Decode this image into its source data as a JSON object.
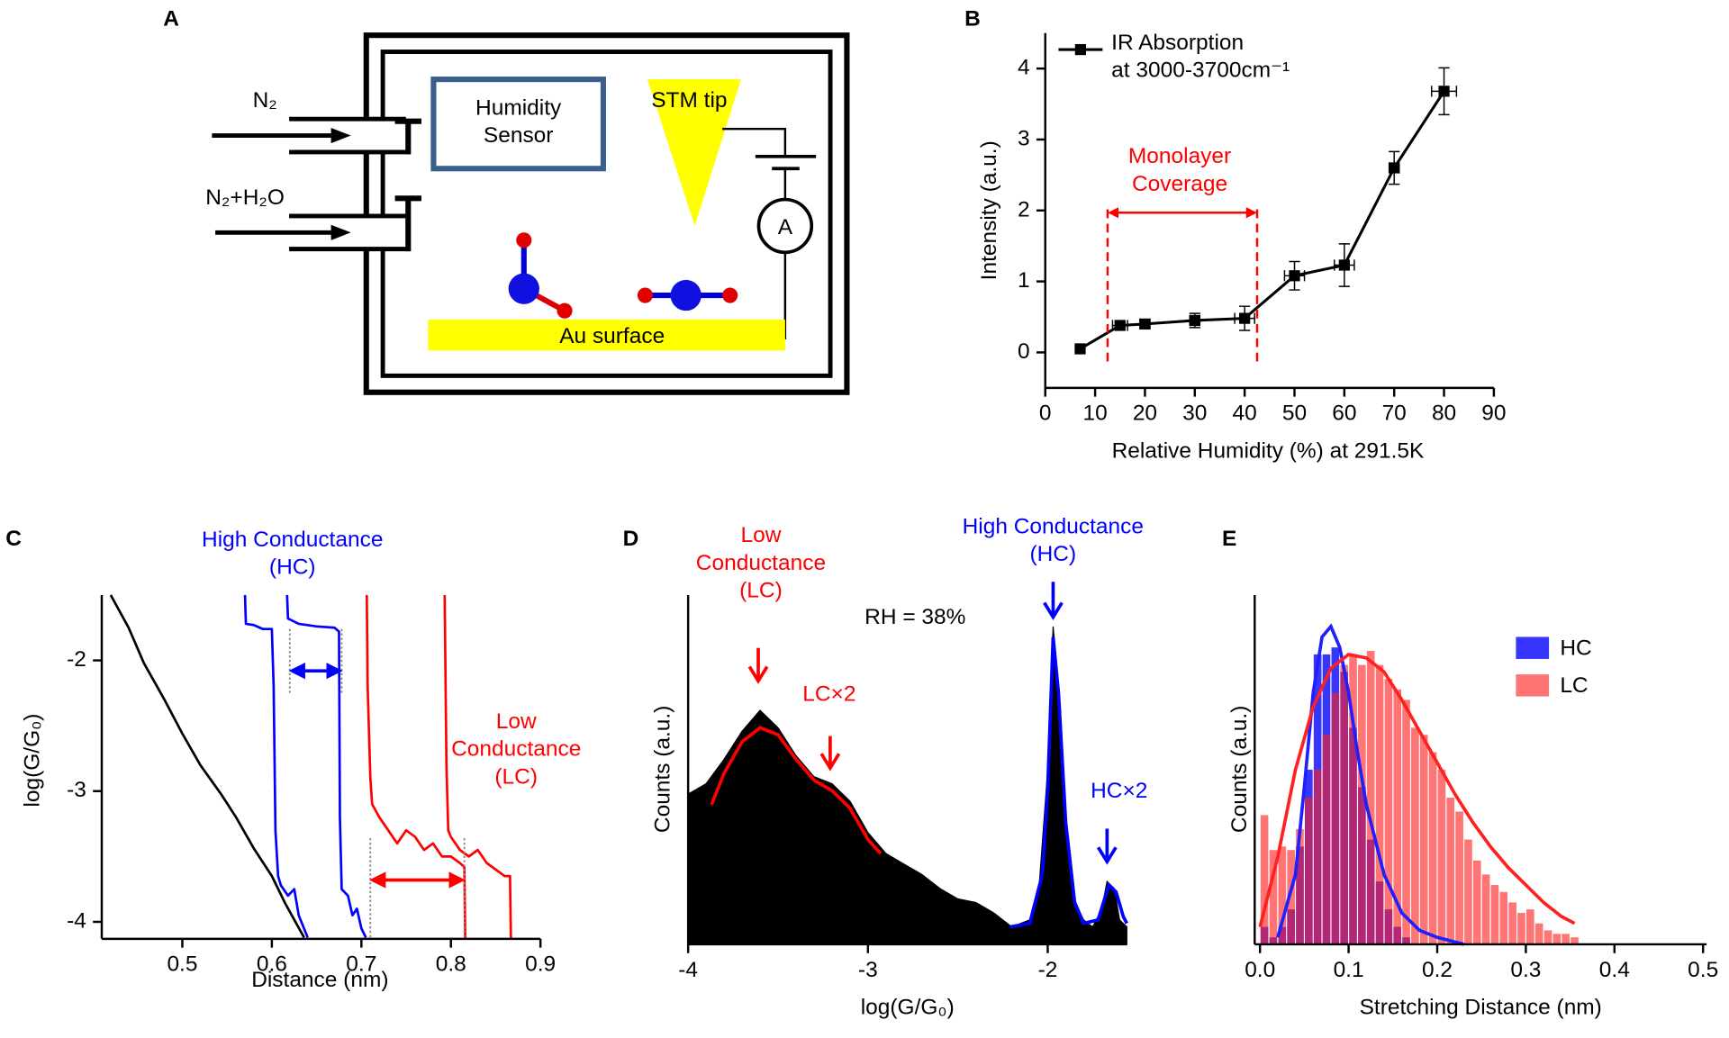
{
  "diagram": {
    "label": "A",
    "inlets": [
      "N₂",
      "N₂+H₂O"
    ],
    "sensor": "Humidity\nSensor",
    "tip": "STM tip",
    "meter": "A",
    "surface": "Au surface"
  },
  "chart_data": [
    {
      "type": "line",
      "panel": "B",
      "xlabel": "Relative Humidity (%) at 291.5K",
      "ylabel": "Intensity (a.u.)",
      "xlim": [
        0,
        90
      ],
      "ylim": [
        -0.5,
        4.5
      ],
      "xticks": [
        0,
        10,
        20,
        30,
        40,
        50,
        60,
        70,
        80,
        90
      ],
      "yticks": [
        0,
        1,
        2,
        3,
        4
      ],
      "legend": "upper left",
      "series": [
        {
          "name": "IR Absorption\nat 3000-3700cm⁻¹",
          "color": "#000000",
          "x": [
            7,
            15,
            20,
            30,
            40,
            50,
            60,
            70,
            80
          ],
          "values": [
            0.05,
            0.38,
            0.4,
            0.45,
            0.48,
            1.08,
            1.23,
            2.6,
            3.68
          ],
          "xerr": [
            0,
            1.5,
            1,
            1,
            2,
            2,
            2,
            1,
            2.5
          ],
          "yerr": [
            0,
            0.04,
            0.04,
            0.1,
            0.17,
            0.2,
            0.3,
            0.23,
            0.33
          ]
        }
      ],
      "range": [
        12.5,
        42.5
      ],
      "range_color": "#ff0000",
      "annotations": [
        {
          "text": "Monolayer\nCoverage",
          "color": "#ff0000"
        }
      ]
    },
    {
      "type": "line",
      "panel": "C",
      "xlabel": "Distance (nm)",
      "ylabel": "log(G/G₀)",
      "xlim": [
        0.41,
        0.9
      ],
      "ylim": [
        -4.13,
        -1.5
      ],
      "xticks": [
        0.5,
        0.6,
        0.7,
        0.8,
        0.9
      ],
      "yticks": [
        -4,
        -3,
        -2
      ],
      "series": [
        {
          "color": "#000000",
          "x": [
            0.42,
            0.44,
            0.457,
            0.48,
            0.5,
            0.52,
            0.543,
            0.56,
            0.58,
            0.6,
            0.615,
            0.636
          ],
          "values": [
            -1.5,
            -1.75,
            -2.02,
            -2.3,
            -2.56,
            -2.8,
            -3.02,
            -3.2,
            -3.44,
            -3.65,
            -3.86,
            -4.12
          ]
        },
        {
          "color": "#0000ff",
          "x": [
            0.57,
            0.571,
            0.58,
            0.59,
            0.6,
            0.602,
            0.604,
            0.607,
            0.61,
            0.618,
            0.625,
            0.63,
            0.64
          ],
          "values": [
            -1.5,
            -1.72,
            -1.73,
            -1.76,
            -1.76,
            -2.2,
            -3.3,
            -3.65,
            -3.72,
            -3.8,
            -3.75,
            -3.95,
            -4.12
          ]
        },
        {
          "color": "#0000ff",
          "x": [
            0.617,
            0.618,
            0.63,
            0.65,
            0.67,
            0.675,
            0.676,
            0.678,
            0.685,
            0.69,
            0.695,
            0.7,
            0.705
          ],
          "values": [
            -1.5,
            -1.68,
            -1.72,
            -1.74,
            -1.75,
            -1.78,
            -3.2,
            -3.75,
            -3.8,
            -3.95,
            -3.9,
            -4.05,
            -4.12
          ]
        },
        {
          "color": "#ff0000",
          "x": [
            0.706,
            0.707,
            0.71,
            0.712,
            0.72,
            0.73,
            0.74,
            0.75,
            0.76,
            0.77,
            0.78,
            0.79,
            0.8,
            0.81,
            0.815,
            0.816
          ],
          "values": [
            -1.5,
            -2.2,
            -2.9,
            -3.1,
            -3.2,
            -3.3,
            -3.4,
            -3.3,
            -3.35,
            -3.45,
            -3.4,
            -3.5,
            -3.5,
            -3.55,
            -3.58,
            -4.13
          ]
        },
        {
          "color": "#ff0000",
          "x": [
            0.793,
            0.795,
            0.797,
            0.8,
            0.81,
            0.82,
            0.83,
            0.84,
            0.85,
            0.86,
            0.866,
            0.867
          ],
          "values": [
            -1.5,
            -2.8,
            -3.3,
            -3.35,
            -3.45,
            -3.5,
            -3.45,
            -3.55,
            -3.6,
            -3.65,
            -3.65,
            -4.13
          ]
        }
      ],
      "arrows": [
        {
          "x": [
            0.62,
            0.678
          ],
          "y": -2.08,
          "color": "#0000ff"
        },
        {
          "x": [
            0.71,
            0.815
          ],
          "y": -3.68,
          "color": "#ff0000"
        }
      ],
      "annotations": [
        {
          "text": "High Conductance\n(HC)",
          "color": "#0000ff"
        },
        {
          "text": "Low\nConductance\n(LC)",
          "color": "#ff0000"
        }
      ]
    },
    {
      "type": "area",
      "panel": "D",
      "xlabel": "log(G/G₀)",
      "ylabel": "Counts (a.u.)",
      "xlim": [
        -4.0,
        -1.56
      ],
      "ylim": [
        0,
        1
      ],
      "xticks": [
        -4,
        -3,
        -2
      ],
      "series": [
        {
          "color": "#000000",
          "fill": true,
          "x": [
            -4.0,
            -3.9,
            -3.8,
            -3.7,
            -3.6,
            -3.5,
            -3.4,
            -3.3,
            -3.2,
            -3.1,
            -3.0,
            -2.9,
            -2.8,
            -2.7,
            -2.6,
            -2.5,
            -2.4,
            -2.3,
            -2.2,
            -2.1,
            -2.05,
            -2.0,
            -1.97,
            -1.93,
            -1.9,
            -1.85,
            -1.8,
            -1.75,
            -1.7,
            -1.67,
            -1.63,
            -1.6,
            -1.56
          ],
          "values": [
            0.43,
            0.46,
            0.53,
            0.61,
            0.67,
            0.62,
            0.54,
            0.48,
            0.46,
            0.41,
            0.32,
            0.26,
            0.23,
            0.2,
            0.16,
            0.13,
            0.12,
            0.09,
            0.05,
            0.07,
            0.15,
            0.5,
            0.91,
            0.68,
            0.31,
            0.12,
            0.07,
            0.05,
            0.1,
            0.18,
            0.16,
            0.07,
            0.05
          ]
        },
        {
          "color": "#ff0000",
          "x": [
            -3.87,
            -3.8,
            -3.7,
            -3.6,
            -3.5,
            -3.4,
            -3.3,
            -3.2,
            -3.1,
            -3.0,
            -2.93
          ],
          "values": [
            0.4,
            0.49,
            0.58,
            0.62,
            0.6,
            0.53,
            0.47,
            0.44,
            0.39,
            0.3,
            0.26
          ]
        },
        {
          "color": "#0000ff",
          "x": [
            -2.21,
            -2.1,
            -2.03,
            -2.0,
            -1.97,
            -1.94,
            -1.9,
            -1.85,
            -1.8,
            -1.72,
            -1.66,
            -1.62,
            -1.58,
            -1.56
          ],
          "values": [
            0.05,
            0.06,
            0.2,
            0.45,
            0.88,
            0.72,
            0.35,
            0.12,
            0.06,
            0.07,
            0.17,
            0.15,
            0.08,
            0.06
          ]
        }
      ],
      "annotations": [
        {
          "text": "Low\nConductance\n(LC)",
          "color": "#ff0000",
          "x": -3.61
        },
        {
          "text": "LC×2",
          "color": "#ff0000",
          "x": -3.21
        },
        {
          "text": "RH = 38%",
          "color": "#000000"
        },
        {
          "text": "High Conductance\n(HC)",
          "color": "#0000ff",
          "x": -1.97
        },
        {
          "text": "HC×2",
          "color": "#0000ff",
          "x": -1.67
        }
      ]
    },
    {
      "type": "histogram",
      "panel": "E",
      "xlabel": "Stretching Distance (nm)",
      "ylabel": "Counts (a.u.)",
      "xlim": [
        -0.006,
        0.504
      ],
      "ylim": [
        0,
        1
      ],
      "xticks": [
        {
          "value": 0,
          "label": "0.0"
        },
        0.1,
        0.2,
        0.3,
        0.4,
        0.5
      ],
      "legend": "upper right",
      "series": [
        {
          "name": "HC",
          "color": "#2020ff",
          "opacity": 0.9,
          "bins": [
            0,
            0.01,
            0.02,
            0.03,
            0.04,
            0.05,
            0.06,
            0.07,
            0.08,
            0.09,
            0.1,
            0.11,
            0.12,
            0.13,
            0.14,
            0.15,
            0.16,
            0.17
          ],
          "values": [
            0.05,
            0.02,
            0.05,
            0.1,
            0.28,
            0.5,
            0.83,
            0.83,
            0.85,
            0.78,
            0.62,
            0.45,
            0.3,
            0.18,
            0.1,
            0.05,
            0.02
          ],
          "fit": {
            "x": [
              0.02,
              0.04,
              0.05,
              0.06,
              0.07,
              0.08,
              0.09,
              0.1,
              0.11,
              0.12,
              0.14,
              0.16,
              0.18,
              0.2,
              0.23
            ],
            "values": [
              0.02,
              0.2,
              0.45,
              0.72,
              0.88,
              0.91,
              0.85,
              0.72,
              0.55,
              0.4,
              0.2,
              0.09,
              0.04,
              0.02,
              0.0
            ]
          }
        },
        {
          "name": "LC",
          "color": "#ff2020",
          "opacity": 0.62,
          "bins": [
            0,
            0.01,
            0.02,
            0.03,
            0.04,
            0.05,
            0.06,
            0.07,
            0.08,
            0.09,
            0.1,
            0.11,
            0.12,
            0.13,
            0.14,
            0.15,
            0.16,
            0.17,
            0.18,
            0.19,
            0.2,
            0.21,
            0.22,
            0.23,
            0.24,
            0.25,
            0.26,
            0.27,
            0.28,
            0.29,
            0.3,
            0.31,
            0.32,
            0.33,
            0.34,
            0.35,
            0.36
          ],
          "values": [
            0.37,
            0.27,
            0.28,
            0.27,
            0.33,
            0.42,
            0.5,
            0.6,
            0.72,
            0.8,
            0.83,
            0.8,
            0.84,
            0.8,
            0.76,
            0.73,
            0.7,
            0.62,
            0.6,
            0.55,
            0.5,
            0.42,
            0.38,
            0.3,
            0.24,
            0.2,
            0.17,
            0.15,
            0.12,
            0.09,
            0.1,
            0.06,
            0.04,
            0.03,
            0.03,
            0.02
          ],
          "fit": {
            "x": [
              0,
              0.02,
              0.04,
              0.06,
              0.08,
              0.1,
              0.12,
              0.14,
              0.16,
              0.18,
              0.2,
              0.22,
              0.24,
              0.26,
              0.28,
              0.3,
              0.32,
              0.34,
              0.355
            ],
            "values": [
              0.05,
              0.25,
              0.5,
              0.68,
              0.79,
              0.83,
              0.82,
              0.78,
              0.7,
              0.61,
              0.52,
              0.43,
              0.35,
              0.28,
              0.22,
              0.17,
              0.12,
              0.08,
              0.06
            ]
          }
        }
      ]
    }
  ]
}
